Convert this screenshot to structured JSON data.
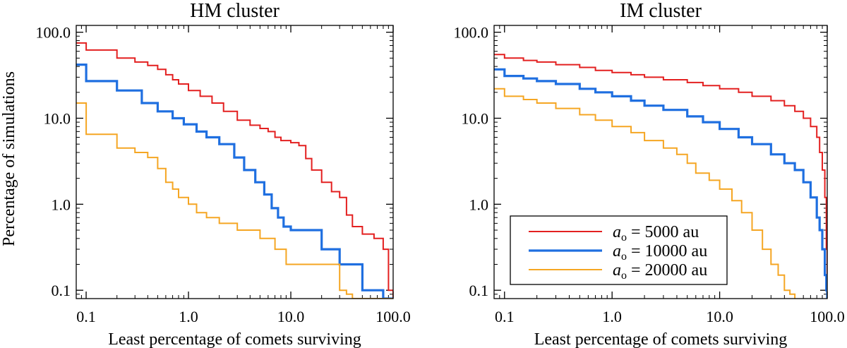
{
  "figure": {
    "shared_ylabel": "Percentage of simulations"
  },
  "chart_data": [
    {
      "type": "line",
      "title": "HM cluster",
      "xlabel": "Least percentage of comets surviving",
      "ylabel": "Percentage of simulations",
      "xscale": "log",
      "yscale": "log",
      "xlim": [
        0.08,
        100
      ],
      "ylim": [
        0.08,
        120
      ],
      "x_tick_labels": [
        "0.1",
        "1.0",
        "10.0",
        "100.0"
      ],
      "y_tick_labels": [
        "0.1",
        "1.0",
        "10.0",
        "100.0"
      ],
      "step": true,
      "series": [
        {
          "name": "a_o = 5000 au",
          "color": "#e32020",
          "width": 2,
          "x": [
            0.08,
            0.1,
            0.2,
            0.3,
            0.4,
            0.5,
            0.6,
            0.7,
            0.8,
            1.0,
            1.3,
            1.7,
            2.2,
            3.0,
            4.0,
            5.0,
            6.0,
            7.0,
            8.0,
            10.0,
            12.0,
            14.0,
            16.0,
            20.0,
            25.0,
            30.0,
            35.0,
            40.0,
            50.0,
            65.0,
            80.0,
            90.0,
            100.0
          ],
          "y": [
            75,
            62,
            50,
            45,
            41,
            37,
            32,
            28,
            25,
            21,
            18,
            15,
            12,
            9.5,
            8.3,
            7.6,
            7.0,
            6.0,
            5.5,
            5.2,
            4.8,
            3.4,
            2.5,
            1.8,
            1.4,
            1.2,
            0.75,
            0.55,
            0.45,
            0.4,
            0.3,
            0.1,
            0.08
          ]
        },
        {
          "name": "a_o = 10000 au",
          "color": "#1f6fe0",
          "width": 3.2,
          "x": [
            0.08,
            0.1,
            0.2,
            0.35,
            0.5,
            0.7,
            0.9,
            1.2,
            1.5,
            2.0,
            2.8,
            3.5,
            4.5,
            5.5,
            6.5,
            7.5,
            8.5,
            10.0,
            15.0,
            20.0,
            30.0,
            50.0,
            80.0,
            100.0
          ],
          "y": [
            42,
            27,
            21,
            15,
            12,
            10,
            8.5,
            7.0,
            6.0,
            5.0,
            3.5,
            2.5,
            1.8,
            1.3,
            0.9,
            0.7,
            0.55,
            0.5,
            0.5,
            0.3,
            0.2,
            0.1,
            0.08,
            0.08
          ]
        },
        {
          "name": "a_o = 20000 au",
          "color": "#f5a623",
          "width": 2,
          "x": [
            0.08,
            0.1,
            0.2,
            0.3,
            0.4,
            0.5,
            0.6,
            0.7,
            0.8,
            1.0,
            1.2,
            1.5,
            2.0,
            3.0,
            5.0,
            7.0,
            9.0,
            30.0,
            35.0,
            40.0,
            100.0
          ],
          "y": [
            15,
            6.5,
            4.5,
            4.0,
            3.5,
            2.6,
            1.8,
            1.5,
            1.2,
            1.0,
            0.8,
            0.7,
            0.6,
            0.5,
            0.4,
            0.3,
            0.2,
            0.1,
            0.09,
            0.08,
            0.08
          ]
        }
      ]
    },
    {
      "type": "line",
      "title": "IM cluster",
      "xlabel": "Least percentage of comets surviving",
      "ylabel": "",
      "xscale": "log",
      "yscale": "log",
      "xlim": [
        0.08,
        100
      ],
      "ylim": [
        0.08,
        120
      ],
      "x_tick_labels": [
        "0.1",
        "1.0",
        "10.0",
        "100.0"
      ],
      "y_tick_labels": [
        "0.1",
        "1.0",
        "10.0",
        "100.0"
      ],
      "step": true,
      "legend_position": "bottom-left",
      "legend": [
        {
          "label_symbol": "a",
          "label_subscript": "o",
          "label_text": " =  5000 au"
        },
        {
          "label_symbol": "a",
          "label_subscript": "o",
          "label_text": " = 10000 au"
        },
        {
          "label_symbol": "a",
          "label_subscript": "o",
          "label_text": " = 20000 au"
        }
      ],
      "series": [
        {
          "name": "a_o = 5000 au",
          "color": "#e32020",
          "width": 2,
          "x": [
            0.08,
            0.1,
            0.15,
            0.2,
            0.3,
            0.5,
            0.7,
            1.0,
            1.5,
            2.0,
            3.0,
            5.0,
            7.0,
            10.0,
            15.0,
            20.0,
            30.0,
            40.0,
            50.0,
            60.0,
            70.0,
            80.0,
            85.0,
            90.0,
            95.0,
            98.0,
            100.0
          ],
          "y": [
            55,
            50,
            47,
            45,
            42,
            39,
            36,
            34,
            32,
            30,
            28,
            26,
            24,
            22,
            20,
            18,
            16,
            14,
            12,
            10,
            8,
            6,
            4,
            2.5,
            1.2,
            0.3,
            0.08
          ]
        },
        {
          "name": "a_o = 10000 au",
          "color": "#1f6fe0",
          "width": 3.2,
          "x": [
            0.08,
            0.1,
            0.15,
            0.2,
            0.3,
            0.5,
            0.7,
            1.0,
            1.5,
            2.0,
            3.0,
            5.0,
            7.0,
            10.0,
            15.0,
            20.0,
            30.0,
            40.0,
            50.0,
            60.0,
            70.0,
            80.0,
            85.0,
            90.0,
            95.0,
            98.0,
            100.0
          ],
          "y": [
            37,
            31,
            29,
            27,
            25,
            22,
            20,
            18,
            16,
            14,
            12.5,
            10.5,
            9,
            7.5,
            6,
            5,
            3.8,
            3.0,
            2.5,
            1.8,
            1.2,
            0.7,
            0.5,
            0.3,
            0.15,
            0.1,
            0.08
          ]
        },
        {
          "name": "a_o = 20000 au",
          "color": "#f5a623",
          "width": 2,
          "x": [
            0.08,
            0.1,
            0.15,
            0.2,
            0.3,
            0.5,
            0.7,
            1.0,
            1.5,
            2.0,
            3.0,
            4.0,
            5.0,
            6.0,
            8.0,
            10.0,
            13.0,
            16.0,
            20.0,
            25.0,
            30.0,
            35.0,
            40.0,
            45.0,
            50.0
          ],
          "y": [
            22,
            18,
            16.5,
            15,
            13,
            11,
            9.5,
            8,
            6.8,
            5.5,
            4.5,
            3.8,
            3.0,
            2.3,
            1.9,
            1.5,
            1.1,
            0.8,
            0.5,
            0.3,
            0.2,
            0.15,
            0.1,
            0.09,
            0.08
          ]
        }
      ]
    }
  ]
}
